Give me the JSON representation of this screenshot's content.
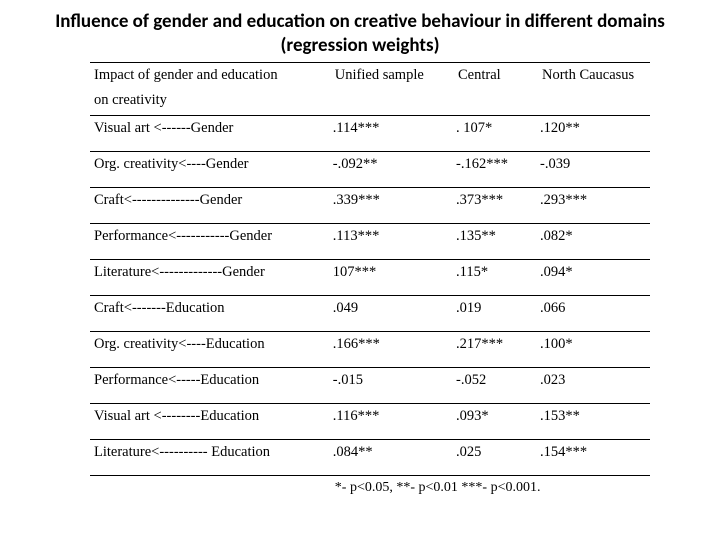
{
  "title_line1": "Influence of gender and education on creative behaviour in different domains",
  "title_line2": "(regression weights)",
  "colors": {
    "text": "#000000",
    "background": "#ffffff",
    "rule": "#000000"
  },
  "typography": {
    "title_font": "Calibri",
    "title_size_pt": 19,
    "title_weight": 700,
    "body_font": "Times New Roman",
    "body_size_pt": 14.5
  },
  "table": {
    "type": "table",
    "column_widths_pct": [
      43,
      22,
      15,
      20
    ],
    "header_row1": [
      "Impact of gender and education",
      "Unified sample",
      "Central",
      "North Caucasus"
    ],
    "header_row2": [
      "on creativity",
      "",
      "",
      ""
    ],
    "rows": [
      {
        "label": "Visual art <------Gender",
        "c1": ".114***",
        "c2": ". 107*",
        "c3": ".120**"
      },
      {
        "label": "Org. creativity<----Gender",
        "c1": "-.092**",
        "c2": "-.162***",
        "c3": "-.039"
      },
      {
        "label": "Craft<--------------Gender",
        "c1": ".339***",
        "c2": ".373***",
        "c3": ".293***"
      },
      {
        "label": "Performance<-----------Gender",
        "c1": ".113***",
        "c2": ".135**",
        "c3": ".082*"
      },
      {
        "label": "Literature<-------------Gender",
        "c1": "107***",
        "c2": ".115*",
        "c3": ".094*"
      },
      {
        "label": "Craft<-------Education",
        "c1": ".049",
        "c2": ".019",
        "c3": ".066"
      },
      {
        "label": "Org. creativity<----Education",
        "c1": ".166***",
        "c2": ".217***",
        "c3": ".100*"
      },
      {
        "label": "Performance<-----Education",
        "c1": "-.015",
        "c2": "-.052",
        "c3": ".023"
      },
      {
        "label": "Visual art <--------Education",
        "c1": ".116***",
        "c2": ".093*",
        "c3": ".153**"
      },
      {
        "label": "Literature<---------- Education",
        "c1": ".084**",
        "c2": ".025",
        "c3": ".154***"
      }
    ],
    "footnote": "*- p<0.05, **- p<0.01 ***- p<0.001."
  }
}
